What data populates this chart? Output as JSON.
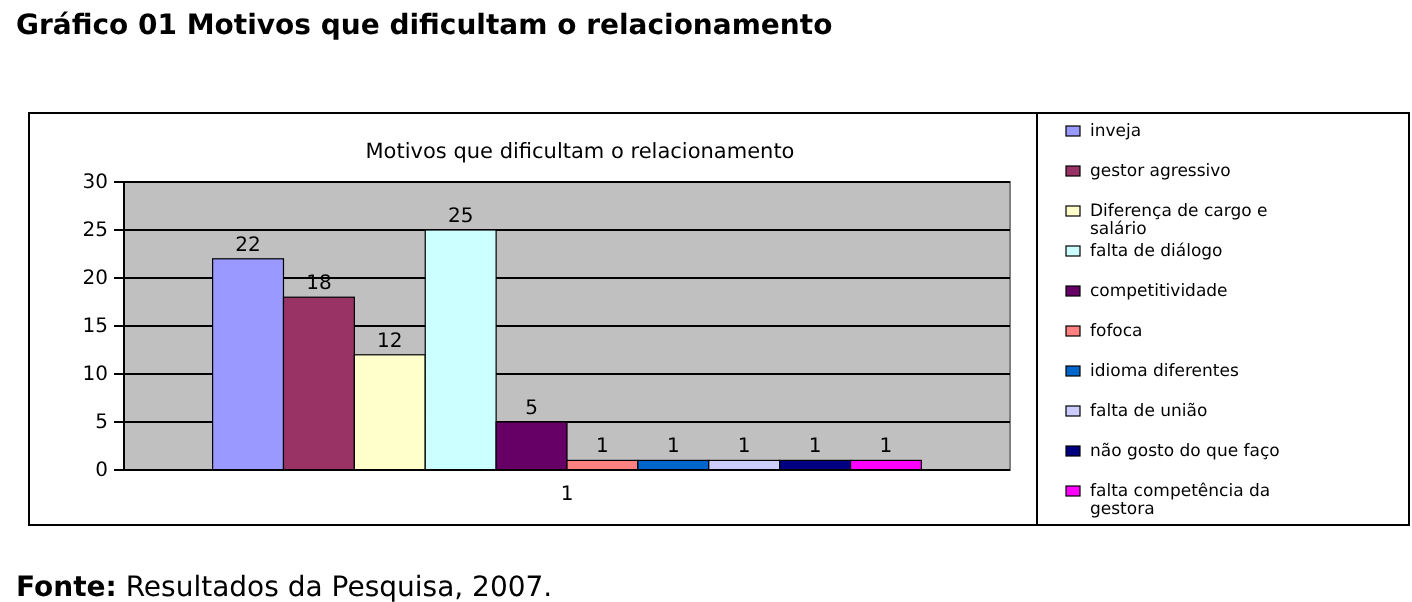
{
  "chart_data": {
    "type": "bar",
    "title": "Gráfico 01 Motivos que dificultam o relacionamento",
    "subtitle": "Motivos que dificultam o relacionamento",
    "annotations": [
      "Fonte: Resultados da Pesquisa, 2007."
    ],
    "categories": [
      "1"
    ],
    "series": [
      {
        "name": "inveja",
        "color": "#9999ff",
        "values": [
          22
        ]
      },
      {
        "name": "gestor agressivo",
        "color": "#993366",
        "values": [
          18
        ]
      },
      {
        "name": "Diferença de cargo e salário",
        "color": "#ffffcc",
        "values": [
          12
        ]
      },
      {
        "name": "falta de diálogo",
        "color": "#ccffff",
        "values": [
          25
        ]
      },
      {
        "name": "competitividade",
        "color": "#660066",
        "values": [
          5
        ]
      },
      {
        "name": "fofoca",
        "color": "#ff8080",
        "values": [
          1
        ]
      },
      {
        "name": "idioma diferentes",
        "color": "#0066cc",
        "values": [
          1
        ]
      },
      {
        "name": "falta de união",
        "color": "#ccccff",
        "values": [
          1
        ]
      },
      {
        "name": "não gosto do que faço",
        "color": "#000080",
        "values": [
          1
        ]
      },
      {
        "name": "falta competência da gestora",
        "color": "#ff00ff",
        "values": [
          1
        ]
      }
    ],
    "ylim": [
      0,
      30
    ],
    "yticks": [
      0,
      5,
      10,
      15,
      20,
      25,
      30
    ],
    "grid": "y",
    "legend": "right",
    "data_labels": true
  }
}
